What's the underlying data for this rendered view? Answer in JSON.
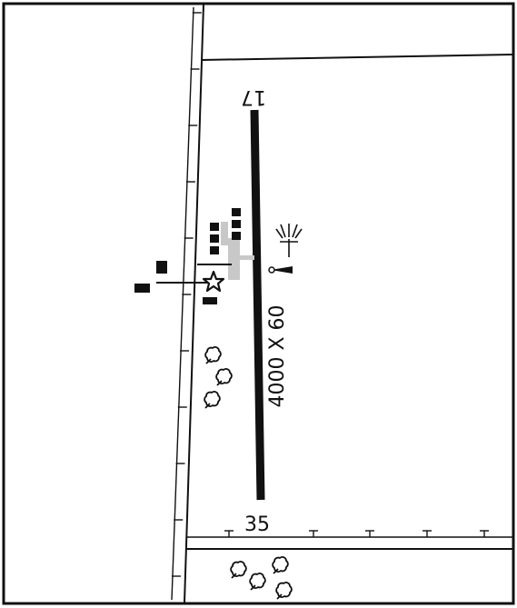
{
  "diagram": {
    "runway": {
      "dimensions": "4000 X 60",
      "end_north": "17",
      "end_south": "35"
    },
    "colors": {
      "ink": "#111111",
      "apron": "#c8c8c8",
      "background": "#ffffff"
    },
    "symbols": [
      "runway",
      "fence",
      "road",
      "buildings",
      "apron",
      "airport-beacon-star",
      "wind-sock",
      "lighted-wind-indicator",
      "trees"
    ]
  }
}
